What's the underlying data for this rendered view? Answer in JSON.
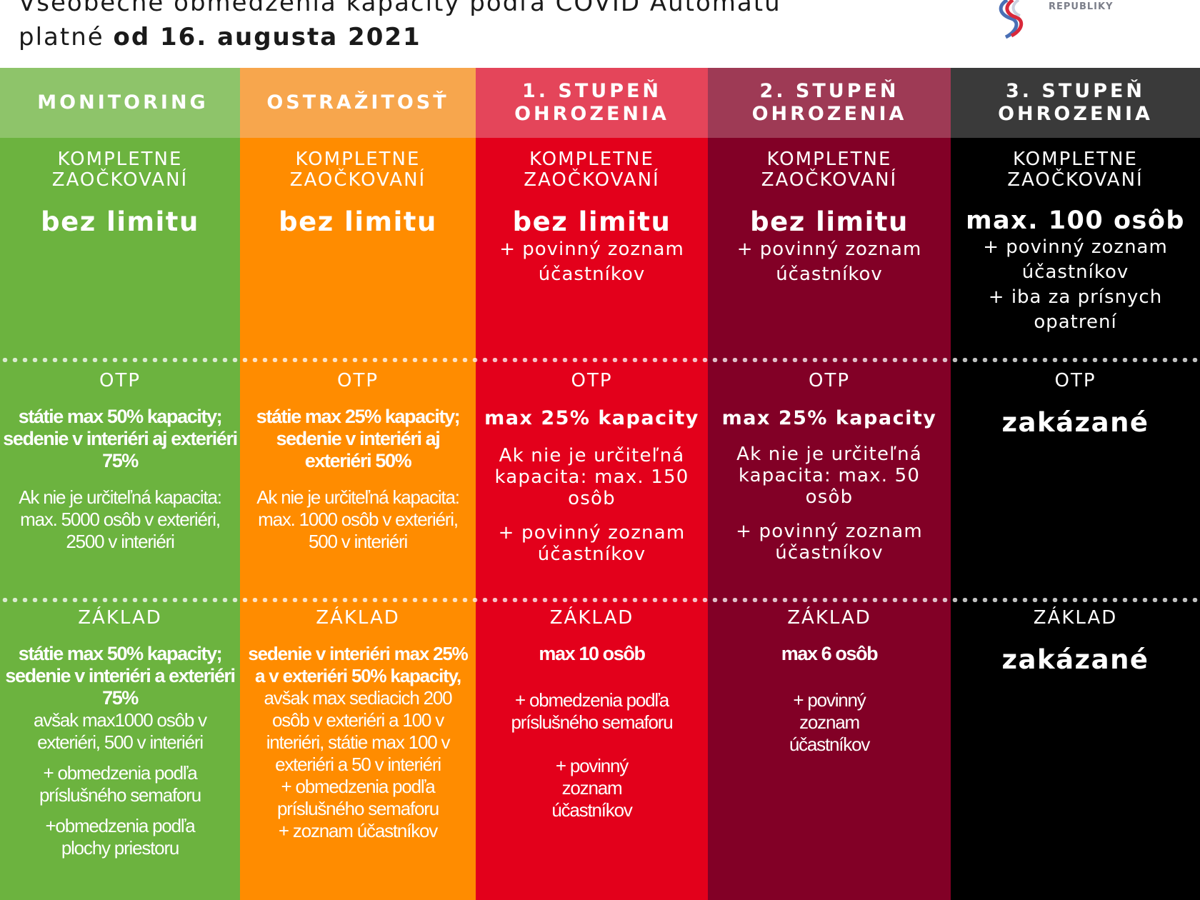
{
  "header": {
    "title_line1": "Všeobecné obmedzenia kapacity podľa COVID Automatu",
    "title_line2_prefix": "platné ",
    "title_line2_bold": "od 16. augusta 2021",
    "logo_text": "REPUBLIKY"
  },
  "colors": {
    "monitoring_head": "#8ec46a",
    "monitoring": "#6cb33f",
    "ostrazitost_head": "#f7a64d",
    "ostrazitost": "#ff8c00",
    "stupen1_head": "#e4455a",
    "stupen1": "#e3001b",
    "stupen2_head": "#9e3a55",
    "stupen2": "#820026",
    "stupen3_head": "#3a3a3a",
    "stupen3": "#000000"
  },
  "columns": [
    {
      "head": "MONITORING",
      "s1_label": "KOMPLETNE ZAOČKOVANÍ",
      "s1_value": "bez limitu",
      "s2_label": "OTP",
      "s2_bold": "státie max 50% kapacity; sedenie v interiéri aj exteriéri 75%",
      "s2_text": "Ak nie je určiteľná kapacita: max. 5000 osôb v exteriéri, 2500 v interiéri",
      "s3_label": "ZÁKLAD",
      "s3_bold": "státie max 50% kapacity; sedenie v interiéri a exteriéri 75%",
      "s3_text": "avšak max1000 osôb v exteriéri, 500 v interiéri",
      "s3_plus1": "+ obmedzenia podľa príslušného semaforu",
      "s3_plus2": "+obmedzenia podľa plochy priestoru"
    },
    {
      "head": "OSTRAŽITOSŤ",
      "s1_label": "KOMPLETNE ZAOČKOVANÍ",
      "s1_value": "bez limitu",
      "s2_label": "OTP",
      "s2_bold": "státie max 25% kapacity; sedenie v interiéri aj exteriéri 50%",
      "s2_text": "Ak nie je určiteľná kapacita: max. 1000 osôb v exteriéri, 500 v interiéri",
      "s3_label": "ZÁKLAD",
      "s3_bold": "sedenie v interiéri max 25% a v exteriéri 50% kapacity,",
      "s3_text": "avšak max sediacich 200 osôb v exteriéri a 100 v interiéri, státie max 100 v exteriéri a 50 v interiéri",
      "s3_plus1": "+ obmedzenia podľa príslušného semaforu",
      "s3_plus2": "+ zoznam účastníkov"
    },
    {
      "head": "1. STUPEŇ OHROZENIA",
      "s1_label": "KOMPLETNE ZAOČKOVANÍ",
      "s1_value": "bez limitu",
      "s1_plus1": "+ povinný zoznam účastníkov",
      "s2_label": "OTP",
      "s2_bold": "max 25% kapacity",
      "s2_text": "Ak nie je určiteľná kapacita: max. 150 osôb",
      "s2_plus": "+ povinný zoznam účastníkov",
      "s3_label": "ZÁKLAD",
      "s3_bold": "max 10 osôb",
      "s3_plus1": "+ obmedzenia podľa príslušného semaforu",
      "s3_plus2": "+ povinný zoznam účastníkov"
    },
    {
      "head": "2. STUPEŇ OHROZENIA",
      "s1_label": "KOMPLETNE ZAOČKOVANÍ",
      "s1_value": "bez limitu",
      "s1_plus1": "+ povinný zoznam účastníkov",
      "s2_label": "OTP",
      "s2_bold": "max 25% kapacity",
      "s2_text": "Ak nie je určiteľná kapacita: max. 50 osôb",
      "s2_plus": "+ povinný zoznam účastníkov",
      "s3_label": "ZÁKLAD",
      "s3_bold": "max 6 osôb",
      "s3_plus1": "+ povinný zoznam účastníkov"
    },
    {
      "head": "3. STUPEŇ OHROZENIA",
      "s1_label": "KOMPLETNE ZAOČKOVANÍ",
      "s1_value": "max. 100 osôb",
      "s1_plus1": "+ povinný zoznam účastníkov",
      "s1_plus2": "+ iba za prísnych opatrení",
      "s2_label": "OTP",
      "s2_value": "zakázané",
      "s3_label": "ZÁKLAD",
      "s3_value": "zakázané"
    }
  ]
}
